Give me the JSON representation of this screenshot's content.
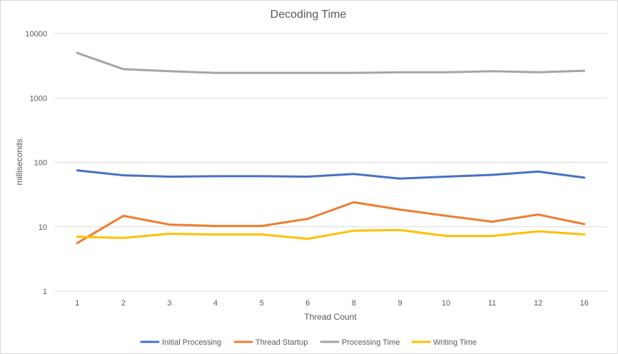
{
  "chart_data": {
    "type": "line",
    "title": "Decoding Time",
    "xlabel": "Thread Count",
    "ylabel": "milliseconds",
    "yscale": "log",
    "ylim": [
      1,
      10000
    ],
    "yticks": [
      "1",
      "10",
      "100",
      "1000",
      "10000"
    ],
    "categories": [
      "1",
      "2",
      "3",
      "4",
      "5",
      "6",
      "8",
      "9",
      "10",
      "11",
      "12",
      "16"
    ],
    "grid": true,
    "legend": "bottom",
    "series": [
      {
        "name": "Initial Processing",
        "color": "#4472c4",
        "values": [
          75,
          63,
          60,
          61,
          61,
          60,
          66,
          56,
          60,
          64,
          72,
          58
        ]
      },
      {
        "name": "Thread Startup",
        "color": "#ed7d31",
        "values": [
          5.6,
          14.8,
          10.8,
          10.3,
          10.3,
          13.3,
          24,
          18.5,
          14.8,
          12,
          15.5,
          11
        ]
      },
      {
        "name": "Processing Time",
        "color": "#a5a5a5",
        "values": [
          5000,
          2800,
          2600,
          2450,
          2450,
          2450,
          2450,
          2500,
          2500,
          2600,
          2500,
          2650
        ]
      },
      {
        "name": "Writing Time",
        "color": "#ffc000",
        "values": [
          7,
          6.7,
          7.8,
          7.6,
          7.6,
          6.5,
          8.7,
          8.9,
          7.2,
          7.2,
          8.5,
          7.6
        ]
      }
    ]
  }
}
